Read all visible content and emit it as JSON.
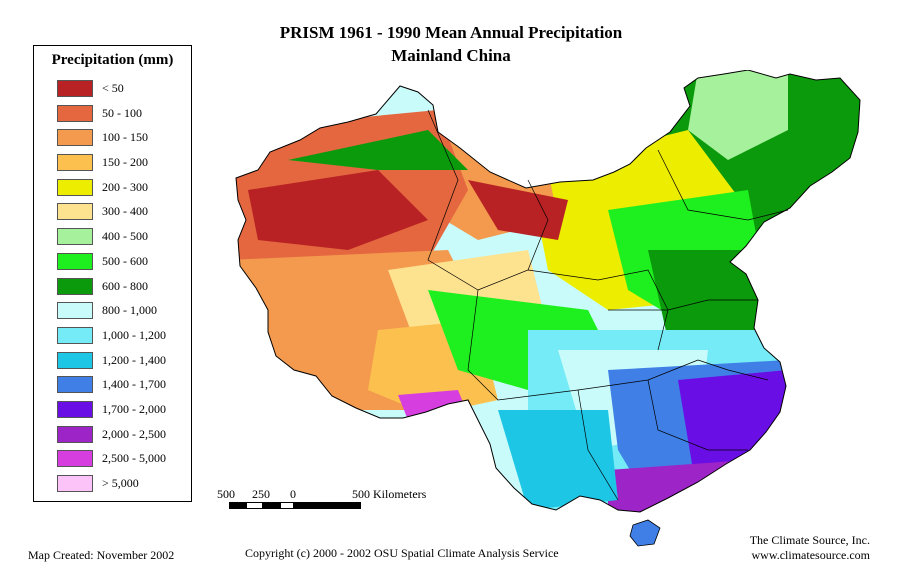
{
  "title": {
    "line1": "PRISM 1961 - 1990  Mean Annual Precipitation",
    "line2": "Mainland China"
  },
  "legend": {
    "title": "Precipitation (mm)",
    "items": [
      {
        "label": "< 50",
        "color": "#b82224"
      },
      {
        "label": "50 - 100",
        "color": "#e4673f"
      },
      {
        "label": "100 - 150",
        "color": "#f39a4e"
      },
      {
        "label": "150 - 200",
        "color": "#fbc04d"
      },
      {
        "label": "200 - 300",
        "color": "#eded00"
      },
      {
        "label": "300 - 400",
        "color": "#fde28f"
      },
      {
        "label": "400 - 500",
        "color": "#a6f29c"
      },
      {
        "label": "500 - 600",
        "color": "#1eef1e"
      },
      {
        "label": "600 - 800",
        "color": "#0b9a0b"
      },
      {
        "label": "800 - 1,000",
        "color": "#c8fbfa"
      },
      {
        "label": "1,000 - 1,200",
        "color": "#74ebf6"
      },
      {
        "label": "1,200 - 1,400",
        "color": "#1ec6e6"
      },
      {
        "label": "1,400 - 1,700",
        "color": "#3f7fe6"
      },
      {
        "label": "1,700 - 2,000",
        "color": "#6a0ee6"
      },
      {
        "label": "2,000 - 2,500",
        "color": "#9d24c6"
      },
      {
        "label": "2,500 - 5,000",
        "color": "#d63ee0"
      },
      {
        "label": "> 5,000",
        "color": "#fbc3f8"
      }
    ]
  },
  "scale": {
    "labels": [
      "500",
      "250",
      "0",
      "500 Kilometers"
    ]
  },
  "footer": {
    "map_created": "Map Created: November 2002",
    "copyright": "Copyright (c) 2000 - 2002 OSU Spatial Climate Analysis Service",
    "company": "The Climate Source, Inc.",
    "website": "www.climatesource.com"
  }
}
